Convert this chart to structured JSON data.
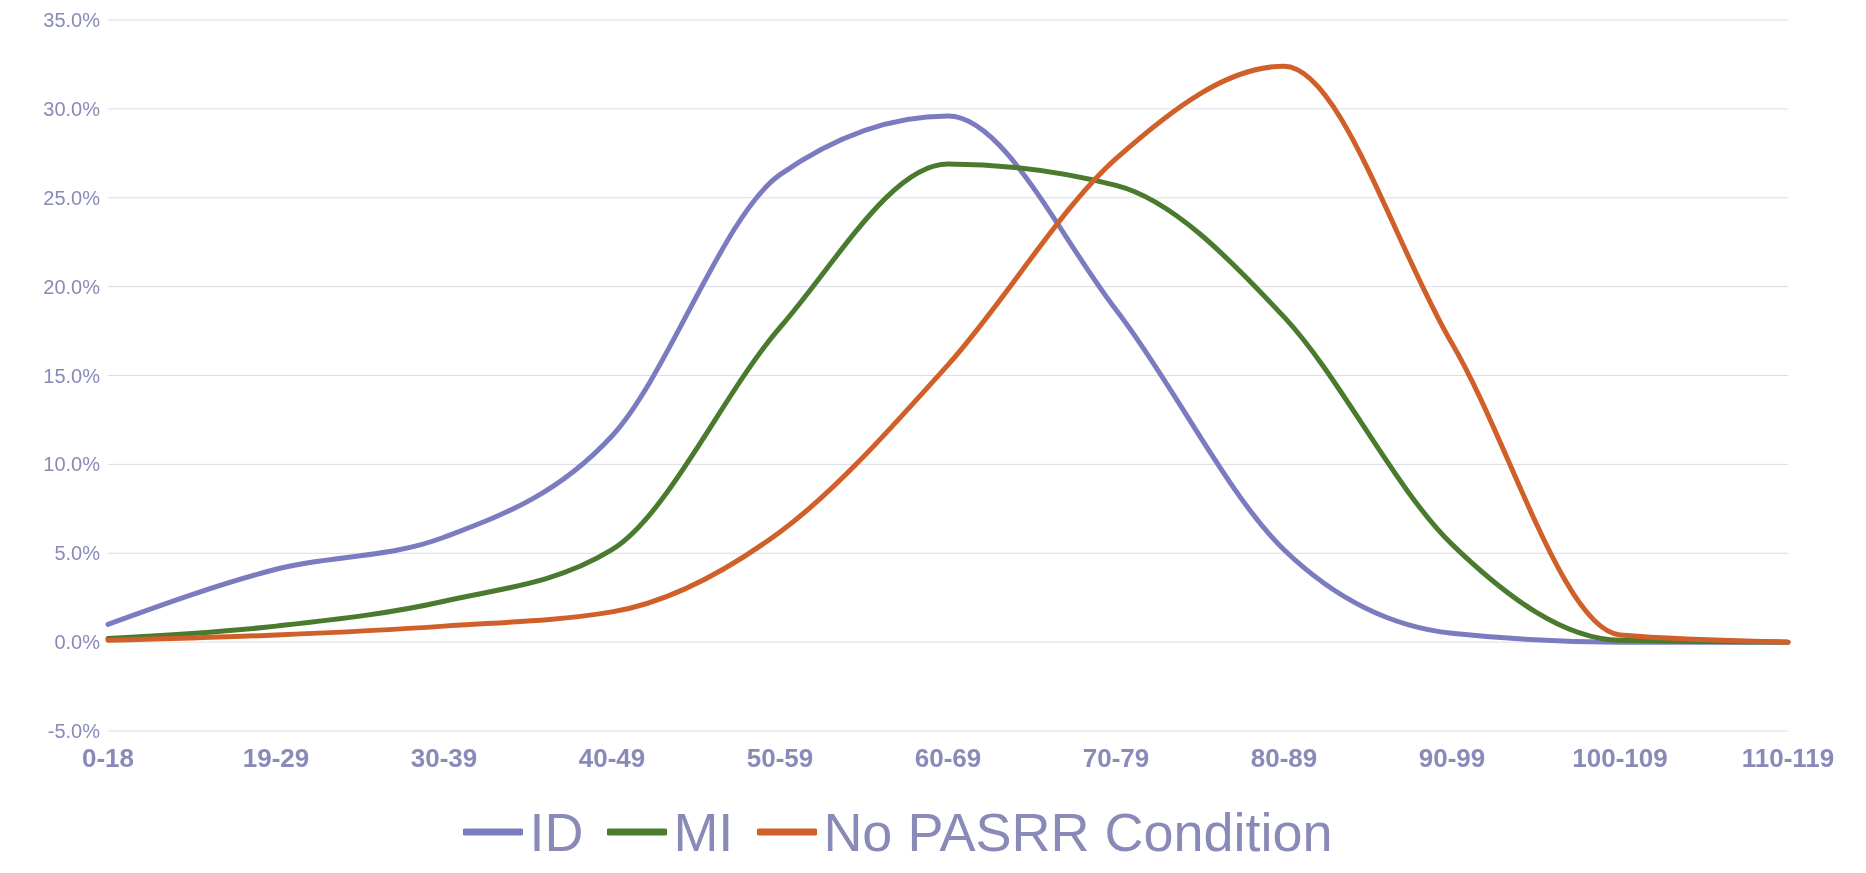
{
  "chart_data": {
    "type": "line",
    "categories": [
      "0-18",
      "19-29",
      "30-39",
      "40-49",
      "50-59",
      "60-69",
      "70-79",
      "80-89",
      "90-99",
      "100-109",
      "110-119"
    ],
    "series": [
      {
        "name": "ID",
        "color": "#7b7bbf",
        "values": [
          1.0,
          4.1,
          5.9,
          11.6,
          26.3,
          29.6,
          18.7,
          5.2,
          0.5,
          0.0,
          0.0
        ]
      },
      {
        "name": "MI",
        "color": "#4a7a2e",
        "values": [
          0.2,
          0.9,
          2.3,
          5.2,
          17.7,
          26.9,
          25.7,
          18.3,
          5.5,
          0.1,
          0.0
        ]
      },
      {
        "name": "No PASRR Condition",
        "color": "#d0602a",
        "values": [
          0.1,
          0.4,
          0.9,
          1.7,
          6.2,
          15.6,
          27.2,
          32.4,
          16.8,
          0.4,
          0.0
        ]
      }
    ],
    "ylim": [
      -5,
      35
    ],
    "yticks": [
      {
        "value": -5,
        "label": "-5.0%"
      },
      {
        "value": 0,
        "label": "0.0%"
      },
      {
        "value": 5,
        "label": "5.0%"
      },
      {
        "value": 10,
        "label": "10.0%"
      },
      {
        "value": 15,
        "label": "15.0%"
      },
      {
        "value": 20,
        "label": "20.0%"
      },
      {
        "value": 25,
        "label": "25.0%"
      },
      {
        "value": 30,
        "label": "30.0%"
      },
      {
        "value": 35,
        "label": "35.0%"
      }
    ],
    "grid": "y",
    "legend": "bottom",
    "marker": "none",
    "line_style": "solid"
  }
}
